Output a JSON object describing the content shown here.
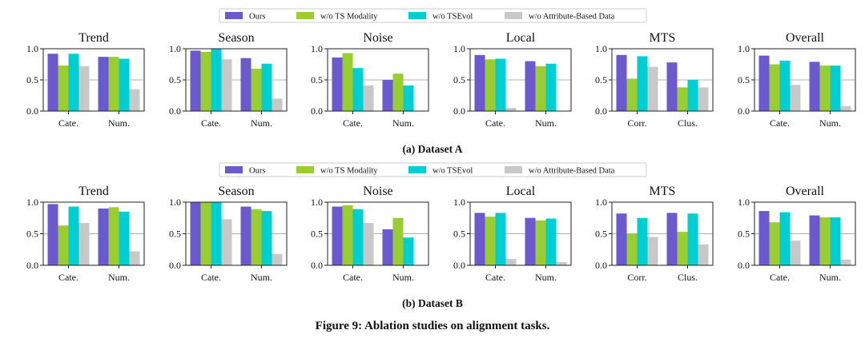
{
  "figure": {
    "caption": "Figure 9: Ablation studies on alignment tasks.",
    "legend": [
      "Ours",
      "w/o TS Modality",
      "w/o TSEvol",
      "w/o Attribute-Based Data"
    ],
    "colors": [
      "#6a5acd",
      "#9acd32",
      "#00ced1",
      "#c8c8c8"
    ]
  },
  "chart_data": [
    {
      "type": "bar",
      "dataset": "A",
      "caption": "(a) Dataset A",
      "series_names": [
        "Ours",
        "w/o TS Modality",
        "w/o TSEvol",
        "w/o Attribute-Based Data"
      ],
      "ylim": [
        0,
        1.0
      ],
      "yticks": [
        "0.0",
        "0.5",
        "1.0"
      ],
      "panels": [
        {
          "title": "Trend",
          "categories": [
            "Cate.",
            "Num."
          ],
          "values": [
            [
              0.92,
              0.73,
              0.92,
              0.72
            ],
            [
              0.87,
              0.87,
              0.84,
              0.35
            ]
          ]
        },
        {
          "title": "Season",
          "categories": [
            "Cate.",
            "Num."
          ],
          "values": [
            [
              0.97,
              0.95,
              1.0,
              0.83
            ],
            [
              0.85,
              0.68,
              0.76,
              0.2
            ]
          ]
        },
        {
          "title": "Noise",
          "categories": [
            "Cate.",
            "Num."
          ],
          "values": [
            [
              0.86,
              0.93,
              0.69,
              0.41
            ],
            [
              0.5,
              0.6,
              0.41,
              0.0
            ]
          ]
        },
        {
          "title": "Local",
          "categories": [
            "Cate.",
            "Num."
          ],
          "values": [
            [
              0.9,
              0.83,
              0.84,
              0.05
            ],
            [
              0.8,
              0.72,
              0.76,
              0.0
            ]
          ]
        },
        {
          "title": "MTS",
          "categories": [
            "Corr.",
            "Clus."
          ],
          "values": [
            [
              0.9,
              0.52,
              0.88,
              0.71
            ],
            [
              0.78,
              0.38,
              0.5,
              0.38
            ]
          ]
        },
        {
          "title": "Overall",
          "categories": [
            "Cate.",
            "Num."
          ],
          "values": [
            [
              0.89,
              0.75,
              0.81,
              0.42
            ],
            [
              0.79,
              0.73,
              0.73,
              0.08
            ]
          ]
        }
      ]
    },
    {
      "type": "bar",
      "dataset": "B",
      "caption": "(b) Dataset B",
      "series_names": [
        "Ours",
        "w/o TS Modality",
        "w/o TSEvol",
        "w/o Attribute-Based Data"
      ],
      "ylim": [
        0,
        1.0
      ],
      "yticks": [
        "0.0",
        "0.5",
        "1.0"
      ],
      "panels": [
        {
          "title": "Trend",
          "categories": [
            "Cate.",
            "Num."
          ],
          "values": [
            [
              0.97,
              0.63,
              0.93,
              0.67
            ],
            [
              0.9,
              0.92,
              0.85,
              0.22
            ]
          ]
        },
        {
          "title": "Season",
          "categories": [
            "Cate.",
            "Num."
          ],
          "values": [
            [
              1.0,
              1.0,
              1.0,
              0.73
            ],
            [
              0.93,
              0.89,
              0.86,
              0.18
            ]
          ]
        },
        {
          "title": "Noise",
          "categories": [
            "Cate.",
            "Num."
          ],
          "values": [
            [
              0.93,
              0.95,
              0.89,
              0.67
            ],
            [
              0.57,
              0.75,
              0.44,
              0.0
            ]
          ]
        },
        {
          "title": "Local",
          "categories": [
            "Cate.",
            "Num."
          ],
          "values": [
            [
              0.83,
              0.77,
              0.83,
              0.1
            ],
            [
              0.75,
              0.71,
              0.74,
              0.05
            ]
          ]
        },
        {
          "title": "MTS",
          "categories": [
            "Corr.",
            "Clus."
          ],
          "values": [
            [
              0.82,
              0.5,
              0.75,
              0.45
            ],
            [
              0.83,
              0.53,
              0.82,
              0.33
            ]
          ]
        },
        {
          "title": "Overall",
          "categories": [
            "Cate.",
            "Num."
          ],
          "values": [
            [
              0.86,
              0.68,
              0.84,
              0.39
            ],
            [
              0.79,
              0.76,
              0.76,
              0.09
            ]
          ]
        }
      ]
    }
  ]
}
